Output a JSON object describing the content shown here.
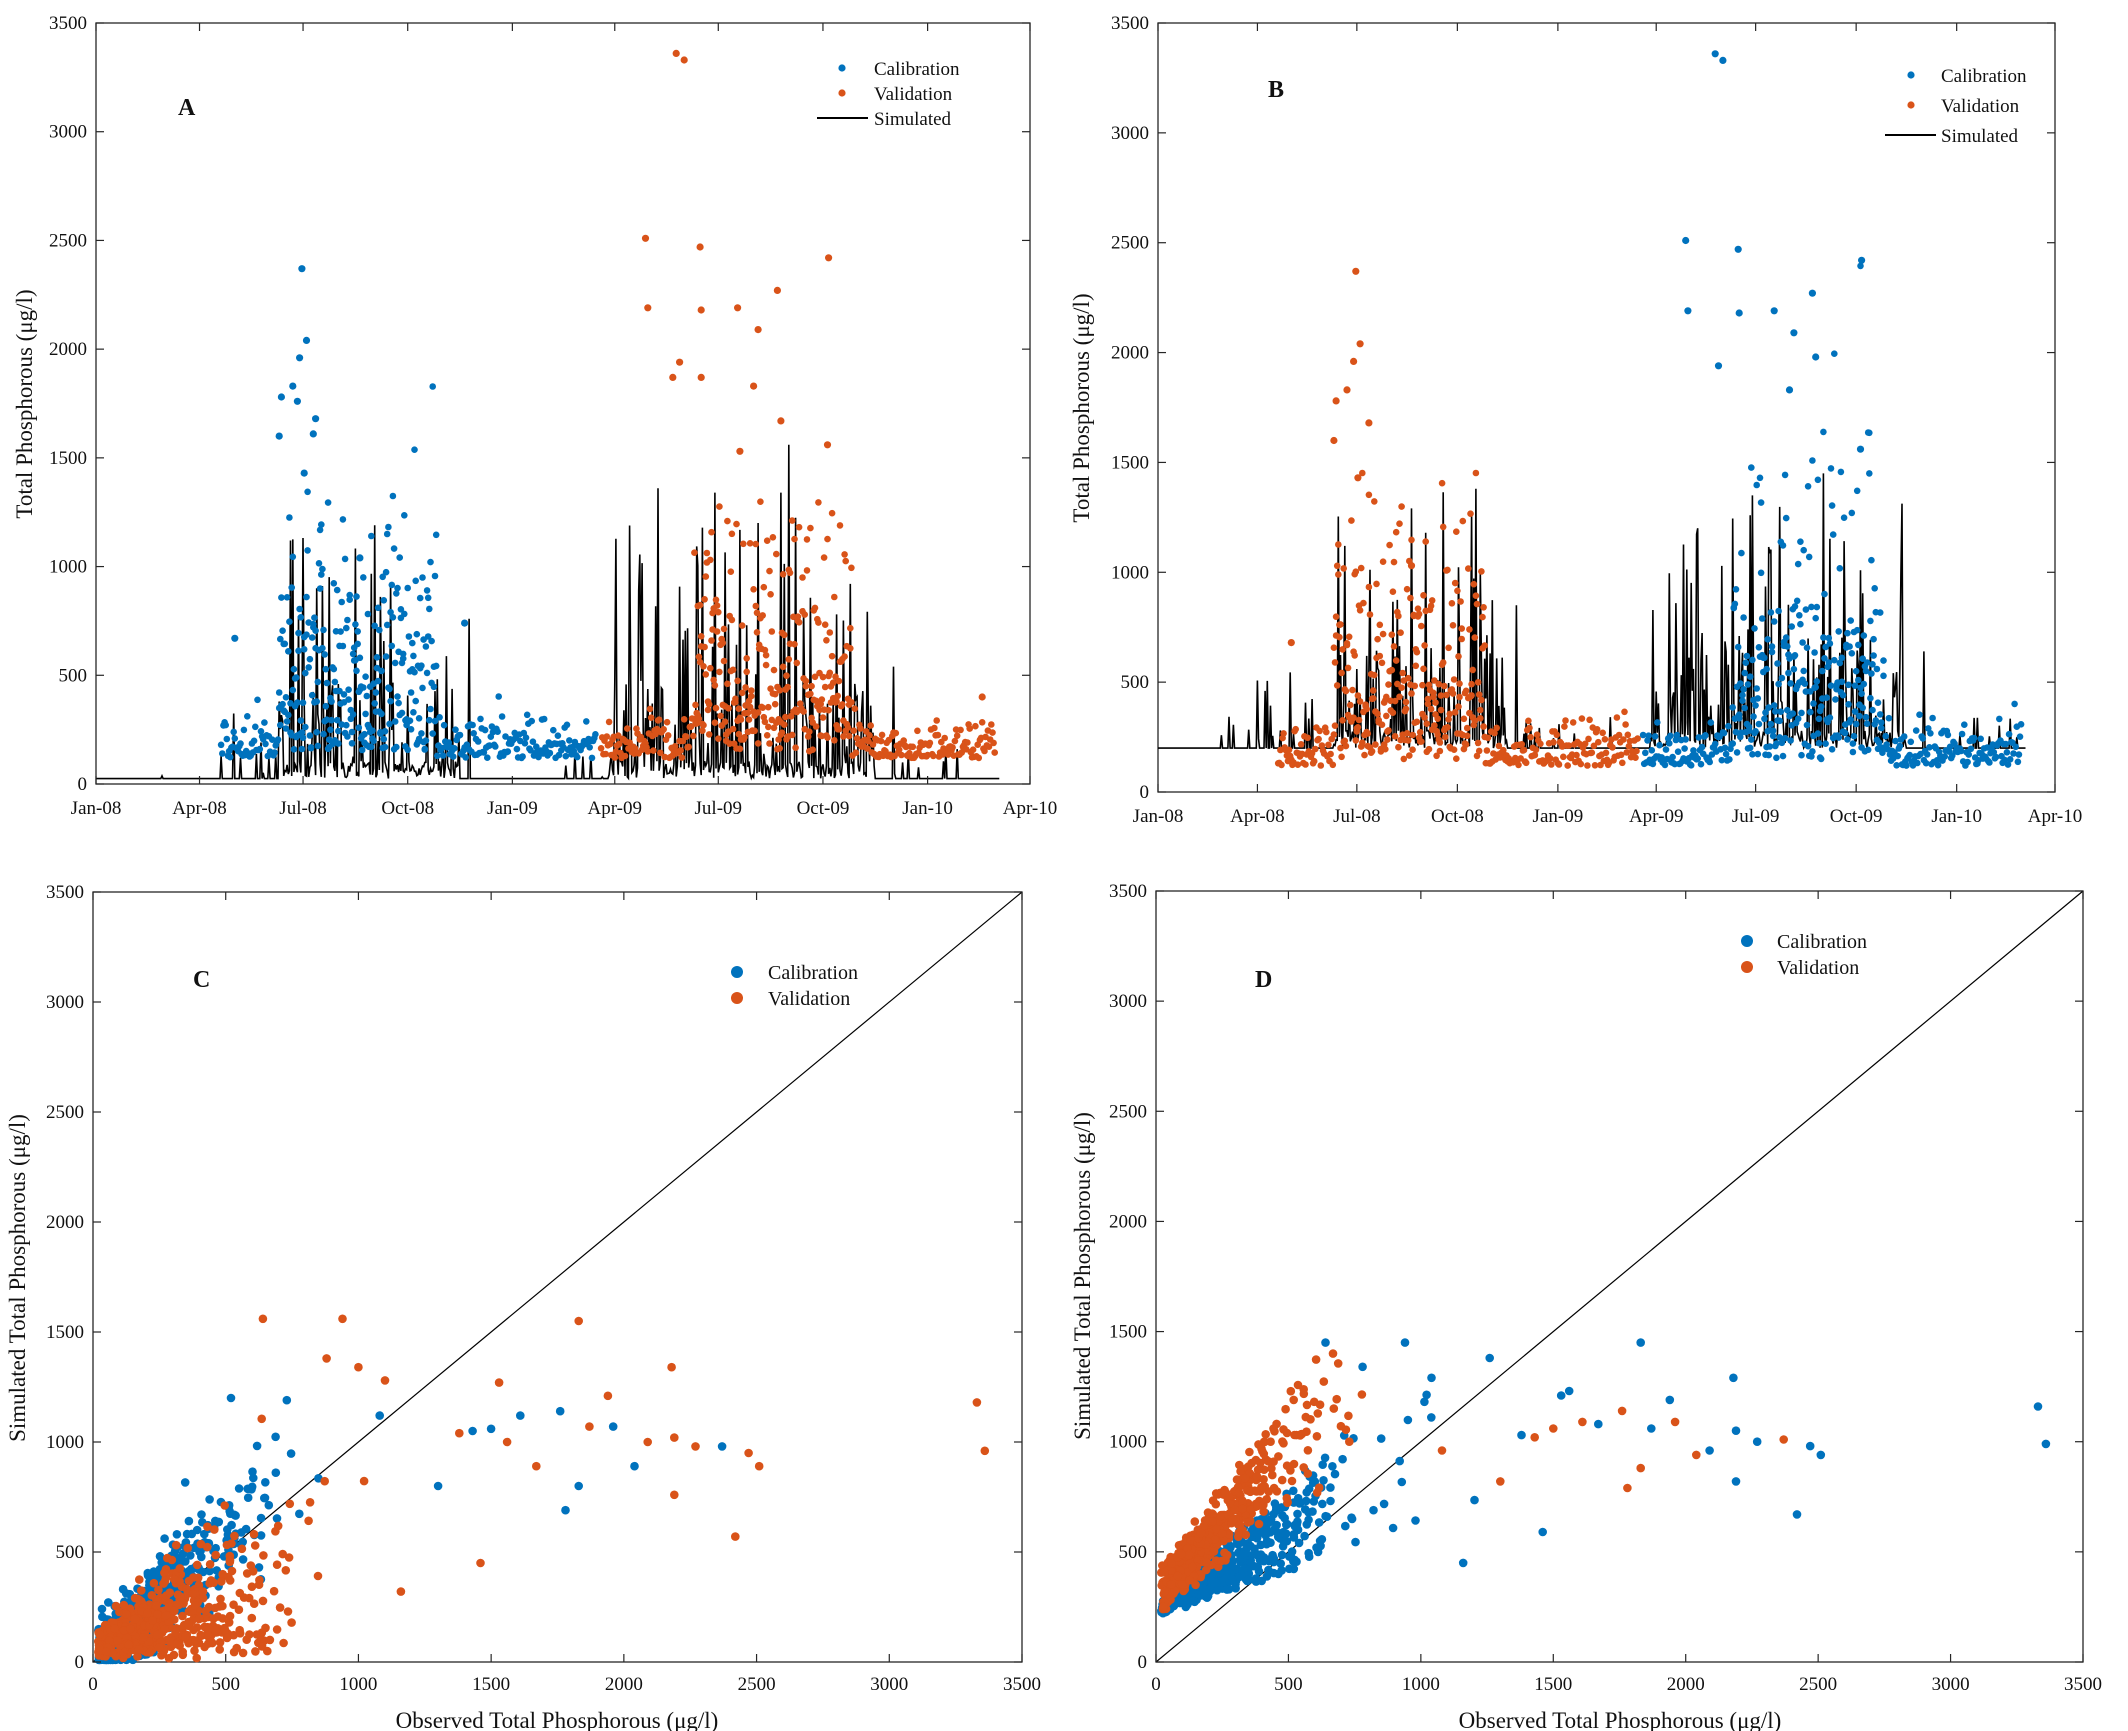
{
  "colors": {
    "calibration": "#0072bd",
    "validation": "#d95319",
    "simulated": "#000000",
    "axis": "#262626",
    "background": "#ffffff"
  },
  "chart_data": [
    {
      "id": "A",
      "type": "line",
      "panel_label": "A",
      "xlabel": "",
      "ylabel": "Total Phosphorous (μg/l)",
      "ylim": [
        0,
        3500
      ],
      "xlim": [
        "2008-01-01",
        "2010-04-01"
      ],
      "grid": false,
      "legend_placement": "top-right",
      "x_ticks": [
        "Jan-08",
        "Apr-08",
        "Jul-08",
        "Oct-08",
        "Jan-09",
        "Apr-09",
        "Jul-09",
        "Oct-09",
        "Jan-10",
        "Apr-10"
      ],
      "y_ticks": [
        0,
        500,
        1000,
        1500,
        2000,
        2500,
        3000,
        3500
      ],
      "series": [
        {
          "name": "Calibration",
          "style": "points",
          "color": "calibration",
          "x_range": [
            "2008-04-20",
            "2009-03-15"
          ],
          "highlights": [
            [
              "2008-06-30",
              2370
            ],
            [
              "2008-07-04",
              2040
            ],
            [
              "2008-06-28",
              1960
            ],
            [
              "2008-06-22",
              1830
            ],
            [
              "2008-06-12",
              1780
            ],
            [
              "2008-06-26",
              1760
            ],
            [
              "2008-07-12",
              1680
            ],
            [
              "2008-06-10",
              1600
            ],
            [
              "2008-07-10",
              1610
            ],
            [
              "2008-07-02",
              1430
            ],
            [
              "2008-08-20",
              1040
            ],
            [
              "2008-11-20",
              740
            ],
            [
              "2008-05-02",
              670
            ]
          ]
        },
        {
          "name": "Validation",
          "style": "points",
          "color": "validation",
          "x_range": [
            "2009-03-20",
            "2010-03-01"
          ],
          "highlights": [
            [
              "2009-05-25",
              3360
            ],
            [
              "2009-06-01",
              3330
            ],
            [
              "2009-04-28",
              2510
            ],
            [
              "2009-06-15",
              2470
            ],
            [
              "2009-10-06",
              2420
            ],
            [
              "2009-08-22",
              2270
            ],
            [
              "2009-04-30",
              2190
            ],
            [
              "2009-06-16",
              2180
            ],
            [
              "2009-07-18",
              2190
            ],
            [
              "2009-08-05",
              2090
            ],
            [
              "2009-05-22",
              1870
            ],
            [
              "2009-05-28",
              1940
            ],
            [
              "2009-06-16",
              1870
            ],
            [
              "2009-08-01",
              1830
            ],
            [
              "2009-08-25",
              1670
            ],
            [
              "2009-10-05",
              1560
            ],
            [
              "2009-07-20",
              1530
            ],
            [
              "2010-02-18",
              400
            ]
          ]
        },
        {
          "name": "Simulated",
          "style": "line",
          "color": "simulated",
          "x_range": [
            "2008-01-01",
            "2010-03-05"
          ],
          "peaks": [
            [
              "2008-06-20",
              1120
            ],
            [
              "2008-09-02",
              1190
            ],
            [
              "2008-11-24",
              760
            ],
            [
              "2009-05-09",
              1360
            ],
            [
              "2009-06-28",
              1340
            ],
            [
              "2009-08-25",
              1340
            ],
            [
              "2009-09-01",
              1560
            ],
            [
              "2009-12-02",
              540
            ]
          ]
        }
      ]
    },
    {
      "id": "B",
      "type": "line",
      "panel_label": "B",
      "xlabel": "",
      "ylabel": "Total Phosphorous (μg/l)",
      "ylim": [
        0,
        3500
      ],
      "xlim": [
        "2008-01-01",
        "2010-04-01"
      ],
      "grid": false,
      "legend_placement": "top-right",
      "x_ticks": [
        "Jan-08",
        "Apr-08",
        "Jul-08",
        "Oct-08",
        "Jan-09",
        "Apr-09",
        "Jul-09",
        "Oct-09",
        "Jan-10",
        "Apr-10"
      ],
      "y_ticks": [
        0,
        500,
        1000,
        1500,
        2000,
        2500,
        3000,
        3500
      ],
      "series": [
        {
          "name": "Calibration",
          "style": "points",
          "color": "calibration",
          "x_range": [
            "2009-03-20",
            "2010-03-01"
          ],
          "highlights": [
            [
              "2009-05-25",
              3360
            ],
            [
              "2009-06-01",
              3330
            ],
            [
              "2009-04-28",
              2510
            ],
            [
              "2009-06-15",
              2470
            ],
            [
              "2009-10-06",
              2420
            ],
            [
              "2009-08-22",
              2270
            ],
            [
              "2009-04-30",
              2190
            ],
            [
              "2009-06-16",
              2180
            ],
            [
              "2009-07-18",
              2190
            ],
            [
              "2009-08-05",
              2090
            ],
            [
              "2009-05-28",
              1940
            ],
            [
              "2009-08-25",
              1980
            ],
            [
              "2009-08-01",
              1830
            ],
            [
              "2009-10-05",
              1560
            ]
          ]
        },
        {
          "name": "Validation",
          "style": "points",
          "color": "validation",
          "x_range": [
            "2008-04-20",
            "2009-03-15"
          ],
          "highlights": [
            [
              "2008-06-30",
              2370
            ],
            [
              "2008-07-04",
              2040
            ],
            [
              "2008-06-28",
              1960
            ],
            [
              "2008-06-22",
              1830
            ],
            [
              "2008-06-12",
              1780
            ],
            [
              "2008-07-12",
              1680
            ],
            [
              "2008-06-10",
              1600
            ],
            [
              "2008-07-02",
              1430
            ],
            [
              "2008-08-20",
              1030
            ],
            [
              "2008-05-02",
              680
            ]
          ]
        },
        {
          "name": "Simulated",
          "style": "line",
          "color": "simulated",
          "x_range": [
            "2008-01-01",
            "2010-03-05"
          ],
          "peaks": [
            [
              "2008-06-20",
              1120
            ],
            [
              "2008-09-02",
              1180
            ],
            [
              "2008-11-24",
              850
            ],
            [
              "2009-05-09",
              1200
            ],
            [
              "2009-06-28",
              1350
            ],
            [
              "2009-09-01",
              1450
            ],
            [
              "2009-12-02",
              640
            ]
          ]
        }
      ]
    },
    {
      "id": "C",
      "type": "scatter",
      "panel_label": "C",
      "xlabel": "Observed Total Phosphorous (μg/l)",
      "ylabel": "Simulated Total Phosphorous (μg/l)",
      "xlim": [
        0,
        3500
      ],
      "ylim": [
        0,
        3500
      ],
      "grid": false,
      "legend_placement": "top-right",
      "reference_line": "1:1",
      "x_ticks": [
        0,
        500,
        1000,
        1500,
        2000,
        2500,
        3000,
        3500
      ],
      "y_ticks": [
        0,
        500,
        1000,
        1500,
        2000,
        2500,
        3000,
        3500
      ],
      "series": [
        {
          "name": "Calibration",
          "color": "calibration",
          "outliers": [
            [
              2370,
              980
            ],
            [
              2040,
              890
            ],
            [
              1960,
              1070
            ],
            [
              1830,
              800
            ],
            [
              1780,
              690
            ],
            [
              1760,
              1140
            ],
            [
              1610,
              1120
            ],
            [
              1430,
              1050
            ],
            [
              1080,
              1120
            ],
            [
              730,
              1190
            ],
            [
              520,
              1200
            ],
            [
              1300,
              800
            ],
            [
              1500,
              1060
            ]
          ]
        },
        {
          "name": "Validation",
          "color": "validation",
          "outliers": [
            [
              3360,
              960
            ],
            [
              3330,
              1180
            ],
            [
              2510,
              890
            ],
            [
              2470,
              950
            ],
            [
              2420,
              570
            ],
            [
              2270,
              980
            ],
            [
              2190,
              760
            ],
            [
              2180,
              1340
            ],
            [
              2190,
              1020
            ],
            [
              2090,
              1000
            ],
            [
              1940,
              1210
            ],
            [
              1870,
              1070
            ],
            [
              1830,
              1550
            ],
            [
              1670,
              890
            ],
            [
              1560,
              1000
            ],
            [
              1530,
              1270
            ],
            [
              1460,
              450
            ],
            [
              1380,
              1040
            ],
            [
              1160,
              320
            ],
            [
              940,
              1560
            ],
            [
              640,
              1560
            ],
            [
              880,
              1380
            ],
            [
              1000,
              1340
            ],
            [
              1100,
              1280
            ]
          ]
        }
      ]
    },
    {
      "id": "D",
      "type": "scatter",
      "panel_label": "D",
      "xlabel": "Observed Total Phosphorous (μg/l)",
      "ylabel": "Simulated Total Phosphorous (μg/l)",
      "xlim": [
        0,
        3500
      ],
      "ylim": [
        0,
        3500
      ],
      "grid": false,
      "legend_placement": "top-right",
      "reference_line": "1:1",
      "x_ticks": [
        0,
        500,
        1000,
        1500,
        2000,
        2500,
        3000,
        3500
      ],
      "y_ticks": [
        0,
        500,
        1000,
        1500,
        2000,
        2500,
        3000,
        3500
      ],
      "series": [
        {
          "name": "Calibration",
          "color": "calibration",
          "outliers": [
            [
              3360,
              990
            ],
            [
              3330,
              1160
            ],
            [
              2510,
              940
            ],
            [
              2470,
              980
            ],
            [
              2420,
              670
            ],
            [
              2270,
              1000
            ],
            [
              2190,
              820
            ],
            [
              2180,
              1290
            ],
            [
              2190,
              1050
            ],
            [
              2090,
              960
            ],
            [
              1940,
              1190
            ],
            [
              1870,
              1060
            ],
            [
              1830,
              1450
            ],
            [
              1670,
              1080
            ],
            [
              1560,
              1230
            ],
            [
              1530,
              1210
            ],
            [
              1460,
              590
            ],
            [
              1380,
              1030
            ],
            [
              1160,
              450
            ],
            [
              940,
              1450
            ],
            [
              640,
              1450
            ],
            [
              780,
              1340
            ],
            [
              1040,
              1290
            ],
            [
              1260,
              1380
            ]
          ]
        },
        {
          "name": "Validation",
          "color": "validation",
          "outliers": [
            [
              2370,
              1010
            ],
            [
              2040,
              940
            ],
            [
              1960,
              1090
            ],
            [
              1830,
              880
            ],
            [
              1780,
              790
            ],
            [
              1760,
              1140
            ],
            [
              1610,
              1090
            ],
            [
              1430,
              1020
            ],
            [
              1080,
              960
            ],
            [
              730,
              1000
            ],
            [
              520,
              1190
            ],
            [
              1300,
              820
            ],
            [
              1500,
              1060
            ]
          ]
        }
      ]
    }
  ]
}
